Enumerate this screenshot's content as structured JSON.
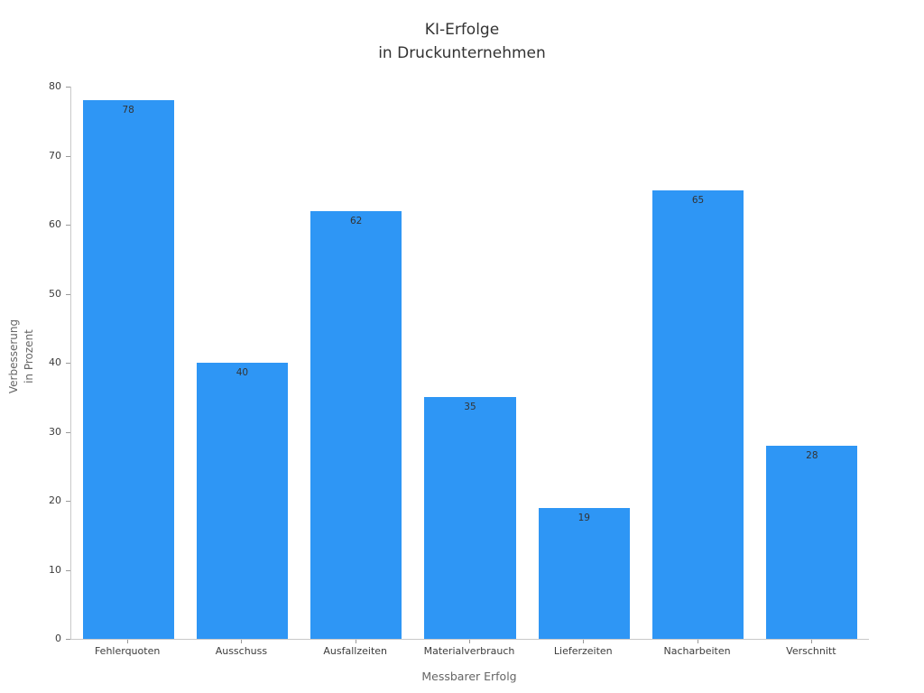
{
  "chart_data": {
    "type": "bar",
    "title_lines": [
      "KI-Erfolge",
      "in Druckunternehmen"
    ],
    "categories": [
      "Fehlerquoten",
      "Ausschuss",
      "Ausfallzeiten",
      "Materialverbrauch",
      "Lieferzeiten",
      "Nacharbeiten",
      "Verschnitt"
    ],
    "values": [
      78,
      40,
      62,
      35,
      19,
      65,
      28
    ],
    "xlabel": "Messbarer Erfolg",
    "ylabel_lines": [
      "Verbesserung",
      "in Prozent"
    ],
    "ylim": [
      0,
      80
    ],
    "ytick_step": 10,
    "grid": false,
    "legend": null,
    "bar_color": "#2e96f5",
    "value_label_color": "#333333",
    "axis_color": "#c9c9c9",
    "tick_label_color": "#3c3c3c"
  }
}
